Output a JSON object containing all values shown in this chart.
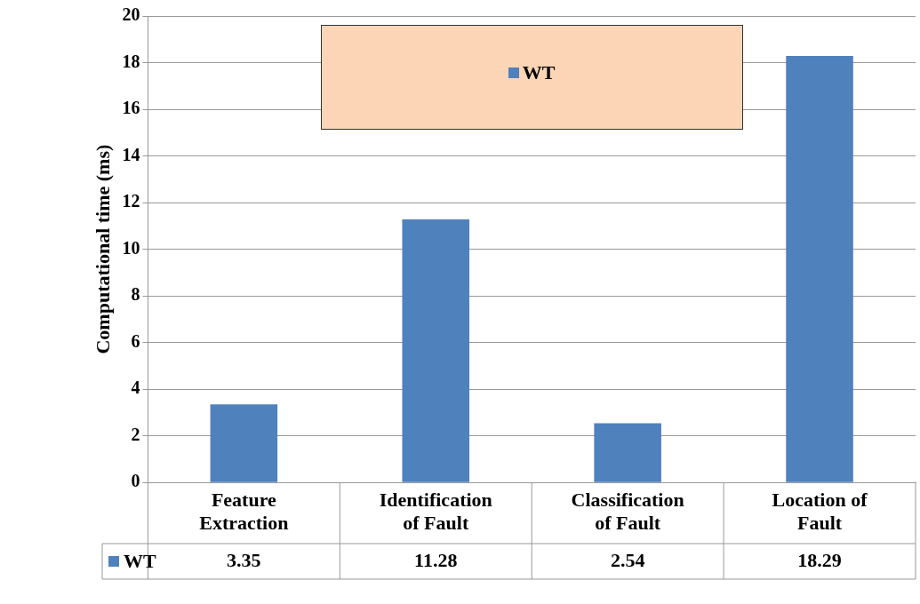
{
  "chart_data": {
    "type": "bar",
    "ylabel": "Computational time (ms)",
    "categories": [
      "Feature Extraction",
      "Identification of Fault",
      "Classification of Fault",
      "Location of Fault"
    ],
    "series": [
      {
        "name": "WT",
        "color": "#4f81bd",
        "values": [
          3.35,
          11.28,
          2.54,
          18.29
        ]
      }
    ],
    "ylim": [
      0,
      20
    ],
    "yticks": [
      0,
      2,
      4,
      6,
      8,
      10,
      12,
      14,
      16,
      18,
      20
    ],
    "grid": "y",
    "legend": "top",
    "data_labels": true
  }
}
